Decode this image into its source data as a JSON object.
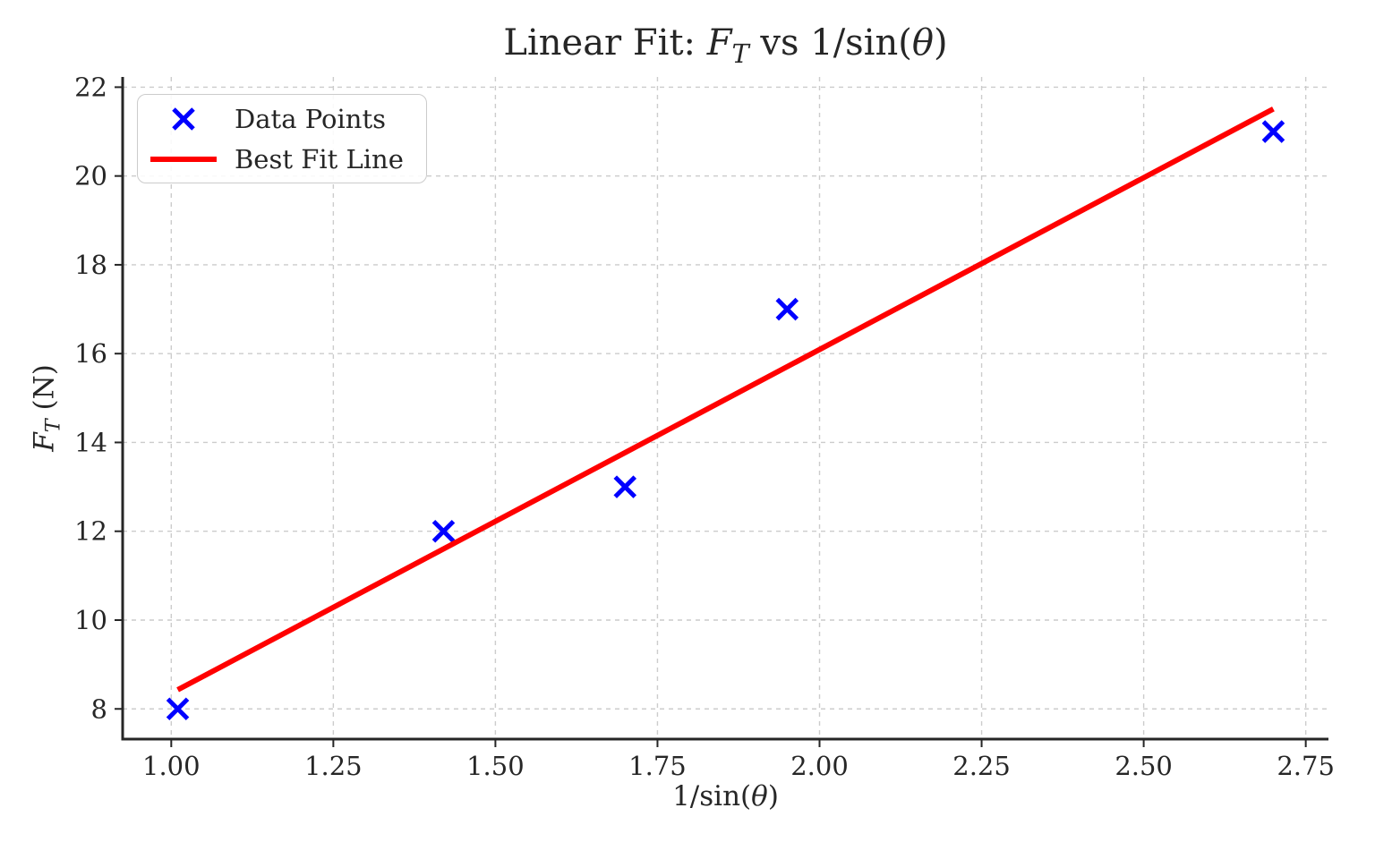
{
  "figure": {
    "background": "#ffffff",
    "text_color": "#262626"
  },
  "chart_data": {
    "type": "scatter",
    "title": "Linear Fit: F_T vs 1/sin(θ)",
    "title_parts": {
      "prefix": "Linear Fit: ",
      "f_italic": "F",
      "f_sub": "T",
      "mid": " vs 1/sin(",
      "theta": "θ",
      "close": ")"
    },
    "xlabel": "1/sin(θ)",
    "xlabel_parts": {
      "pre": "1/sin(",
      "theta": "θ",
      "close": ")"
    },
    "ylabel": "F_T (N)",
    "ylabel_parts": {
      "f_italic": "F",
      "f_sub": "T",
      "rest": " (N)"
    },
    "xlim": [
      0.925,
      2.785
    ],
    "ylim": [
      7.32,
      22.23
    ],
    "x_ticks": [
      {
        "value": 1.0,
        "label": "1.00"
      },
      {
        "value": 1.25,
        "label": "1.25"
      },
      {
        "value": 1.5,
        "label": "1.50"
      },
      {
        "value": 1.75,
        "label": "1.75"
      },
      {
        "value": 2.0,
        "label": "2.00"
      },
      {
        "value": 2.25,
        "label": "2.25"
      },
      {
        "value": 2.5,
        "label": "2.50"
      },
      {
        "value": 2.75,
        "label": "2.75"
      }
    ],
    "y_ticks": [
      {
        "value": 8,
        "label": "8"
      },
      {
        "value": 10,
        "label": "10"
      },
      {
        "value": 12,
        "label": "12"
      },
      {
        "value": 14,
        "label": "14"
      },
      {
        "value": 16,
        "label": "16"
      },
      {
        "value": 18,
        "label": "18"
      },
      {
        "value": 20,
        "label": "20"
      },
      {
        "value": 22,
        "label": "22"
      }
    ],
    "grid": {
      "visible": true,
      "style": "dashed"
    },
    "legend_position": "upper left",
    "series": [
      {
        "name": "Data Points",
        "type": "scatter",
        "marker": "x",
        "color": "#0000ff",
        "x": [
          1.01,
          1.42,
          1.7,
          1.95,
          2.7
        ],
        "y": [
          8,
          12,
          13,
          17,
          21
        ]
      },
      {
        "name": "Best Fit Line",
        "type": "line",
        "color": "#ff0000",
        "slope": 7.74,
        "intercept": 0.61,
        "x": [
          1.01,
          2.7
        ],
        "y": [
          8.43,
          21.51
        ]
      }
    ],
    "colors": {
      "marker": "#0000ff",
      "fit_line": "#ff0000",
      "grid": "#cccccc",
      "axis": "#262626",
      "legend_border": "#cccccc"
    }
  }
}
